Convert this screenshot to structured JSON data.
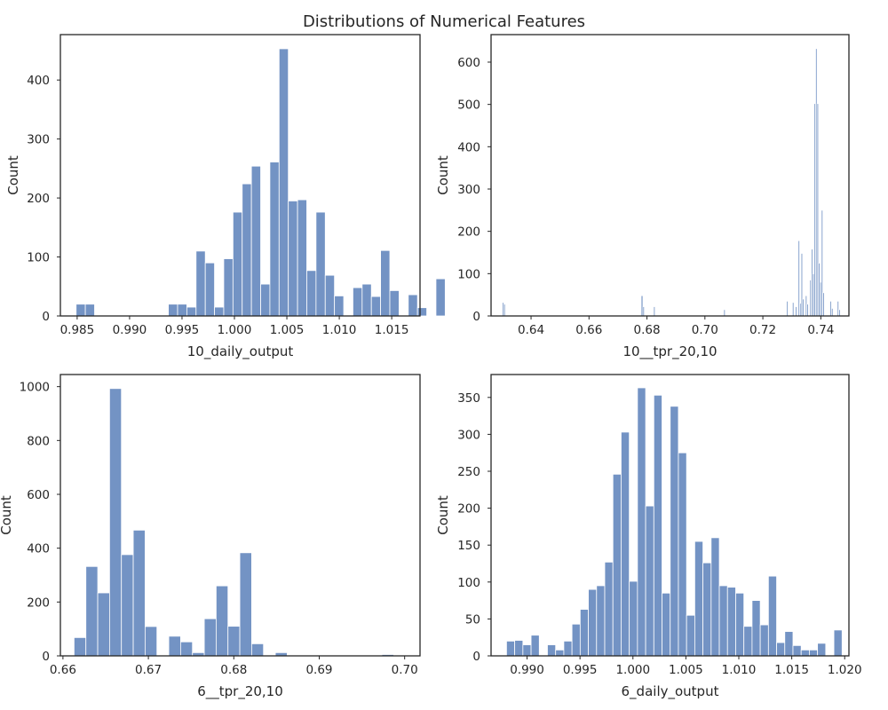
{
  "figure": {
    "title": "Distributions of Numerical Features"
  },
  "colors": {
    "bar_fill": "#7393c4",
    "bar_edge": "#ffffff",
    "spine": "#262626",
    "background": "#ffffff"
  },
  "chart_data": [
    {
      "type": "bar",
      "variant": "histogram",
      "xlabel": "10_daily_output",
      "ylabel": "Count",
      "xlim": [
        0.9834,
        1.0177
      ],
      "ylim": [
        0,
        477
      ],
      "xticks": [
        0.985,
        0.99,
        0.995,
        1.0,
        1.005,
        1.01,
        1.015
      ],
      "xtick_labels": [
        "0.985",
        "0.990",
        "0.995",
        "1.000",
        "1.005",
        "1.010",
        "1.015"
      ],
      "yticks": [
        0,
        100,
        200,
        300,
        400
      ],
      "ytick_labels": [
        "0",
        "100",
        "200",
        "300",
        "400"
      ],
      "bin_start": 0.9849,
      "bin_width": 0.00088,
      "counts": [
        20,
        20,
        0,
        0,
        0,
        0,
        0,
        0,
        0,
        0,
        20,
        20,
        15,
        110,
        90,
        15,
        97,
        176,
        224,
        254,
        54,
        261,
        453,
        195,
        197,
        77,
        176,
        69,
        34,
        0,
        48,
        54,
        33,
        111,
        43,
        0,
        36,
        14,
        0,
        63
      ],
      "grid": false,
      "legend": null
    },
    {
      "type": "bar",
      "variant": "histogram",
      "xlabel": "10__tpr_20,10",
      "ylabel": "Count",
      "xlim": [
        0.6262,
        0.7497
      ],
      "ylim": [
        0,
        665
      ],
      "xticks": [
        0.64,
        0.66,
        0.68,
        0.7,
        0.72,
        0.74
      ],
      "xtick_labels": [
        "0.64",
        "0.66",
        "0.68",
        "0.70",
        "0.72",
        "0.74"
      ],
      "yticks": [
        0,
        100,
        200,
        300,
        400,
        500,
        600
      ],
      "ytick_labels": [
        "0",
        "100",
        "200",
        "300",
        "400",
        "500",
        "600"
      ],
      "bins": [
        {
          "x0": 0.6301,
          "x1": 0.6306,
          "count": 32
        },
        {
          "x0": 0.6306,
          "x1": 0.6311,
          "count": 28
        },
        {
          "x0": 0.678,
          "x1": 0.6786,
          "count": 48
        },
        {
          "x0": 0.6786,
          "x1": 0.6791,
          "count": 22
        },
        {
          "x0": 0.6823,
          "x1": 0.6828,
          "count": 22
        },
        {
          "x0": 0.7065,
          "x1": 0.707,
          "count": 15
        },
        {
          "x0": 0.7282,
          "x1": 0.7287,
          "count": 35
        },
        {
          "x0": 0.7302,
          "x1": 0.7307,
          "count": 32
        },
        {
          "x0": 0.7312,
          "x1": 0.7317,
          "count": 22
        },
        {
          "x0": 0.7322,
          "x1": 0.7327,
          "count": 178
        },
        {
          "x0": 0.7327,
          "x1": 0.7332,
          "count": 30
        },
        {
          "x0": 0.7332,
          "x1": 0.7337,
          "count": 148
        },
        {
          "x0": 0.7337,
          "x1": 0.7342,
          "count": 40
        },
        {
          "x0": 0.7347,
          "x1": 0.7352,
          "count": 48
        },
        {
          "x0": 0.7352,
          "x1": 0.7357,
          "count": 28
        },
        {
          "x0": 0.7362,
          "x1": 0.7367,
          "count": 85
        },
        {
          "x0": 0.7367,
          "x1": 0.7372,
          "count": 158
        },
        {
          "x0": 0.7372,
          "x1": 0.7377,
          "count": 100
        },
        {
          "x0": 0.7377,
          "x1": 0.7382,
          "count": 502
        },
        {
          "x0": 0.7382,
          "x1": 0.7387,
          "count": 632
        },
        {
          "x0": 0.7387,
          "x1": 0.7392,
          "count": 502
        },
        {
          "x0": 0.7392,
          "x1": 0.7397,
          "count": 125
        },
        {
          "x0": 0.7397,
          "x1": 0.7402,
          "count": 80
        },
        {
          "x0": 0.7402,
          "x1": 0.7407,
          "count": 250
        },
        {
          "x0": 0.7407,
          "x1": 0.7412,
          "count": 55
        },
        {
          "x0": 0.7432,
          "x1": 0.7437,
          "count": 35
        },
        {
          "x0": 0.7437,
          "x1": 0.7442,
          "count": 18
        },
        {
          "x0": 0.7457,
          "x1": 0.7462,
          "count": 35
        },
        {
          "x0": 0.7462,
          "x1": 0.7467,
          "count": 15
        }
      ],
      "grid": false,
      "legend": null
    },
    {
      "type": "bar",
      "variant": "histogram",
      "xlabel": "6__tpr_20,10",
      "ylabel": "Count",
      "xlim": [
        0.6597,
        0.7018
      ],
      "ylim": [
        0,
        1045
      ],
      "xticks": [
        0.66,
        0.67,
        0.68,
        0.69,
        0.7
      ],
      "xtick_labels": [
        "0.66",
        "0.67",
        "0.68",
        "0.69",
        "0.70"
      ],
      "yticks": [
        0,
        200,
        400,
        600,
        800,
        1000
      ],
      "ytick_labels": [
        "0",
        "200",
        "400",
        "600",
        "800",
        "1000"
      ],
      "bin_start": 0.6613,
      "bin_width": 0.001386,
      "counts": [
        68,
        332,
        234,
        993,
        376,
        467,
        109,
        0,
        73,
        52,
        12,
        138,
        260,
        110,
        383,
        45,
        0,
        12,
        0,
        0,
        0,
        0,
        0,
        0,
        0,
        0,
        5
      ],
      "grid": false,
      "legend": null
    },
    {
      "type": "bar",
      "variant": "histogram",
      "xlabel": "6_daily_output",
      "ylabel": "Count",
      "xlim": [
        0.9866,
        1.0204
      ],
      "ylim": [
        0,
        381
      ],
      "xticks": [
        0.99,
        0.995,
        1.0,
        1.005,
        1.01,
        1.015,
        1.02
      ],
      "xtick_labels": [
        "0.990",
        "0.995",
        "1.000",
        "1.005",
        "1.010",
        "1.015",
        "1.020"
      ],
      "yticks": [
        0,
        50,
        100,
        150,
        200,
        250,
        300,
        350
      ],
      "ytick_labels": [
        "0",
        "50",
        "100",
        "150",
        "200",
        "250",
        "300",
        "350"
      ],
      "bin_start": 0.98806,
      "bin_width": 0.000773,
      "counts": [
        20,
        21,
        15,
        28,
        0,
        15,
        8,
        20,
        43,
        63,
        90,
        95,
        127,
        246,
        303,
        101,
        363,
        203,
        353,
        85,
        338,
        275,
        55,
        155,
        126,
        160,
        95,
        93,
        85,
        40,
        75,
        42,
        108,
        18,
        33,
        14,
        8,
        8,
        17,
        0,
        35
      ],
      "grid": false,
      "legend": null
    }
  ]
}
